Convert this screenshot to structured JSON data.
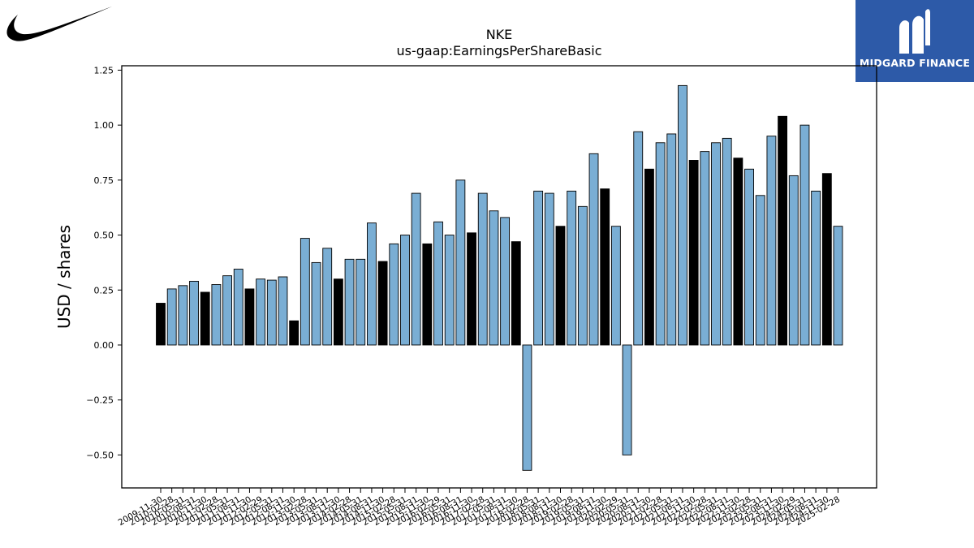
{
  "logos": {
    "left": {
      "icon": "swoosh-logo-icon"
    },
    "right": {
      "icon": "midgard-m-icon",
      "text": "MIDGARD FINANCE",
      "bg_color": "#2d5aa8"
    }
  },
  "chart_data": {
    "type": "bar",
    "title": "NKE",
    "subtitle": "us-gaap:EarningsPerShareBasic",
    "xlabel": "",
    "ylabel": "USD / shares",
    "ylim": [
      -0.65,
      1.27
    ],
    "yticks": [
      -0.5,
      -0.25,
      0.0,
      0.25,
      0.5,
      0.75,
      1.0,
      1.25
    ],
    "ytick_labels": [
      "−0.50",
      "−0.25",
      "0.00",
      "0.25",
      "0.50",
      "0.75",
      "1.00",
      "1.25"
    ],
    "grid": false,
    "colors": {
      "quarterly": "#7aaed4",
      "annual": "#000000",
      "edge": "#000000"
    },
    "categories": [
      "2009-11-30",
      "2010-02-28",
      "2010-05-31",
      "2010-08-31",
      "2010-11-30",
      "2011-02-28",
      "2011-05-31",
      "2011-08-31",
      "2011-11-30",
      "2012-02-29",
      "2012-05-31",
      "2012-08-31",
      "2012-11-30",
      "2013-02-28",
      "2013-05-31",
      "2013-08-31",
      "2013-11-30",
      "2014-02-28",
      "2014-05-31",
      "2014-08-31",
      "2014-11-30",
      "2015-02-28",
      "2015-05-31",
      "2015-08-31",
      "2015-11-30",
      "2016-02-29",
      "2016-05-31",
      "2016-08-31",
      "2016-11-30",
      "2017-02-28",
      "2017-05-31",
      "2017-08-31",
      "2017-11-30",
      "2018-02-28",
      "2018-05-31",
      "2018-08-31",
      "2018-11-30",
      "2019-02-28",
      "2019-05-31",
      "2019-08-31",
      "2019-11-30",
      "2020-02-29",
      "2020-05-31",
      "2020-08-31",
      "2020-11-30",
      "2021-02-28",
      "2021-05-31",
      "2021-08-31",
      "2021-11-30",
      "2022-02-28",
      "2022-05-31",
      "2022-08-31",
      "2022-11-30",
      "2023-02-28",
      "2023-05-31",
      "2023-08-31",
      "2023-11-30",
      "2024-02-29",
      "2024-05-31",
      "2024-08-31",
      "2024-11-30",
      "2025-02-28"
    ],
    "values": [
      0.19,
      0.255,
      0.27,
      0.29,
      0.24,
      0.275,
      0.315,
      0.345,
      0.255,
      0.3,
      0.295,
      0.31,
      0.11,
      0.485,
      0.375,
      0.44,
      0.3,
      0.39,
      0.39,
      0.555,
      0.38,
      0.46,
      0.5,
      0.69,
      0.46,
      0.56,
      0.5,
      0.75,
      0.51,
      0.69,
      0.61,
      0.58,
      0.47,
      -0.57,
      0.7,
      0.69,
      0.54,
      0.7,
      0.63,
      0.87,
      0.71,
      0.54,
      -0.5,
      0.97,
      0.8,
      0.92,
      0.96,
      1.18,
      0.84,
      0.88,
      0.92,
      0.94,
      0.85,
      0.8,
      0.68,
      0.95,
      1.04,
      0.77,
      1.0,
      0.7,
      0.78,
      0.54
    ],
    "annual": [
      true,
      false,
      false,
      false,
      true,
      false,
      false,
      false,
      true,
      false,
      false,
      false,
      true,
      false,
      false,
      false,
      true,
      false,
      false,
      false,
      true,
      false,
      false,
      false,
      true,
      false,
      false,
      false,
      true,
      false,
      false,
      false,
      true,
      false,
      false,
      false,
      true,
      false,
      false,
      false,
      true,
      false,
      false,
      false,
      true,
      false,
      false,
      false,
      true,
      false,
      false,
      false,
      true,
      false,
      false,
      false,
      true,
      false,
      false,
      false,
      true,
      false
    ]
  }
}
